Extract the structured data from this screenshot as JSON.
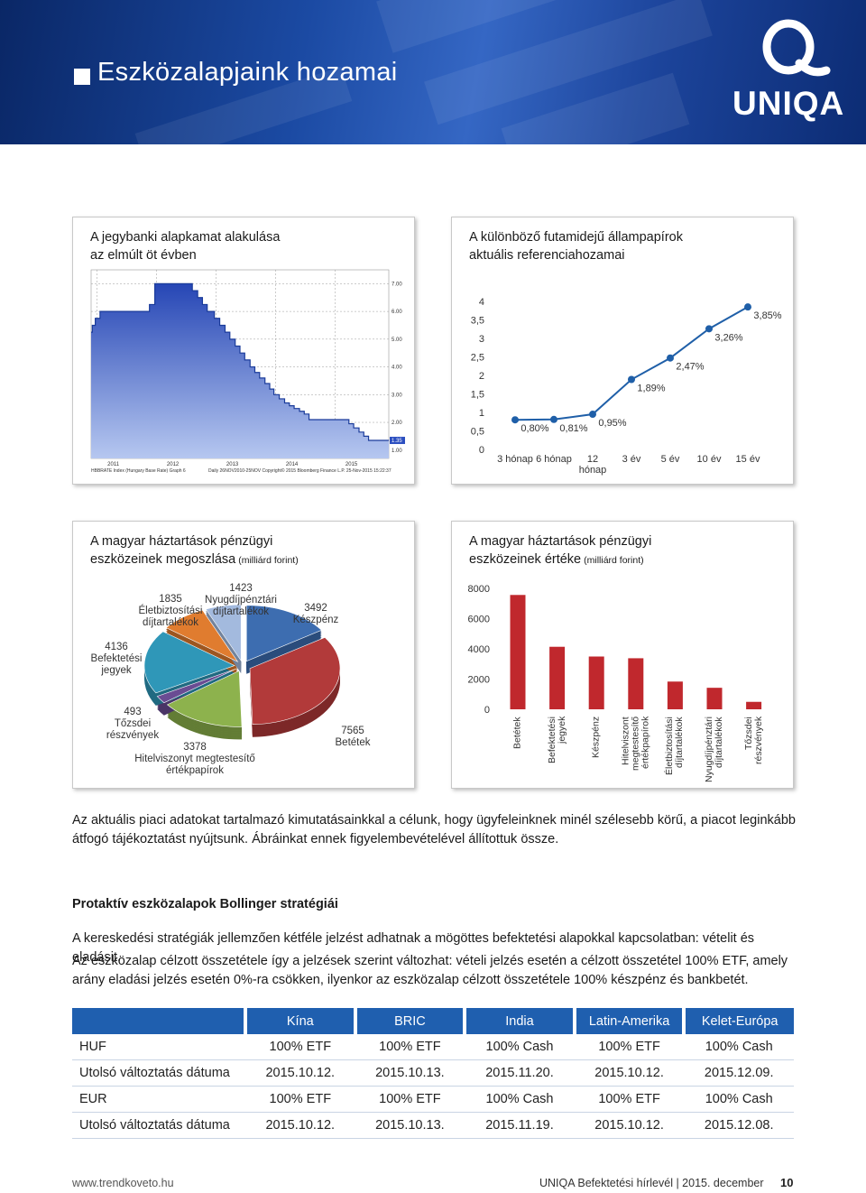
{
  "header": {
    "title": "Eszközalapjaink hozamai",
    "logo": "UNIQA"
  },
  "chart_data": [
    {
      "type": "line",
      "step": true,
      "title": "A jegybanki alapkamat alakulása\naz elmúlt öt évben",
      "x": [
        2010.9,
        2010.92,
        2010.97,
        2011.05,
        2011.88,
        2011.97,
        2012.6,
        2012.69,
        2012.77,
        2012.85,
        2012.97,
        2013.06,
        2013.15,
        2013.23,
        2013.32,
        2013.4,
        2013.48,
        2013.57,
        2013.65,
        2013.73,
        2013.82,
        2013.9,
        2013.97,
        2014.06,
        2014.15,
        2014.23,
        2014.31,
        2014.4,
        2014.48,
        2014.56,
        2015.23,
        2015.31,
        2015.4,
        2015.48,
        2015.56,
        2015.9
      ],
      "values": [
        5.25,
        5.5,
        5.75,
        6.0,
        6.25,
        7.0,
        6.75,
        6.5,
        6.25,
        6.0,
        5.75,
        5.5,
        5.25,
        5.0,
        4.75,
        4.5,
        4.25,
        4.0,
        3.8,
        3.6,
        3.4,
        3.2,
        3.0,
        2.85,
        2.7,
        2.6,
        2.5,
        2.4,
        2.3,
        2.1,
        1.95,
        1.8,
        1.65,
        1.5,
        1.35,
        1.35
      ],
      "color": "#1a3b9a",
      "xlim": [
        2010.9,
        2015.9
      ],
      "xticks": [
        2011,
        2012,
        2013,
        2014,
        2015
      ],
      "ylim": [
        0.7,
        7.5
      ],
      "yticks": [
        {
          "value": 1,
          "label": "1.00"
        },
        {
          "value": 2,
          "label": "2.00"
        },
        {
          "value": 3,
          "label": "3.00"
        },
        {
          "value": 4,
          "label": "4.00"
        },
        {
          "value": 5,
          "label": "5.00"
        },
        {
          "value": 6,
          "label": "6.00"
        },
        {
          "value": 7,
          "label": "7.00"
        }
      ],
      "last_value": {
        "value": 1.35,
        "label": "1.35"
      },
      "grid": true,
      "notes": [
        "HBBRATE Index (Hungary Base Rate) Graph 6",
        "Daily 26NOV2010-25NOV Copyright© 2015 Bloomberg Finance L.P.  25-Nov-2015 15:22:37"
      ]
    },
    {
      "type": "line",
      "title": "A különböző futamidejű állampapírok\naktuális referenciahozamai",
      "categories": [
        "3 hónap",
        "6 hónap",
        "12 hónap",
        "3 év",
        "5 év",
        "10 év",
        "15 év"
      ],
      "values": [
        0.8,
        0.81,
        0.95,
        1.89,
        2.47,
        3.26,
        3.85
      ],
      "value_labels": [
        "0,80%",
        "0,81%",
        "0,95%",
        "1,89%",
        "2,47%",
        "3,26%",
        "3,85%"
      ],
      "color": "#1f5fa8",
      "ylim": [
        0,
        4
      ],
      "yticks": [
        0,
        {
          "value": 0.5,
          "label": "0,5"
        },
        1,
        {
          "value": 1.5,
          "label": "1,5"
        },
        2,
        {
          "value": 2.5,
          "label": "2,5"
        },
        3,
        {
          "value": 3.5,
          "label": "3,5"
        },
        4
      ]
    },
    {
      "type": "pie",
      "title": "A magyar háztartások pénzügyi\neszközeinek megoszlása",
      "subtitle": "(milliárd forint)",
      "categories": [
        "Készpénz",
        "Betétek",
        "Hitelviszonyt megtestesítő értékpapírok",
        "Tőzsdei részvények",
        "Befektetési jegyek",
        "Életbiztosítási díjtartalékok",
        "Nyugdíjpénztári díjtartalékok"
      ],
      "values": [
        3492,
        7565,
        3378,
        493,
        4136,
        1835,
        1423
      ],
      "colors": [
        "#3d6db0",
        "#b23a3a",
        "#8db24d",
        "#6a4c93",
        "#2f97b8",
        "#e07c2f",
        "#a3bade"
      ]
    },
    {
      "type": "bar",
      "title": "A magyar háztartások pénzügyi\neszközeinek értéke",
      "subtitle": "(milliárd forint)",
      "categories": [
        "Betétek",
        "Befektetési jegyek",
        "Készpénz",
        "Hitelviszont megtestesítő értékpapírok",
        "Életbiztosítási díjtartalékok",
        "Nyugdíjpénztári díjtartalékok",
        "Tőzsdei részvények"
      ],
      "values": [
        7565,
        4136,
        3492,
        3378,
        1835,
        1423,
        493
      ],
      "color": "#c0282d",
      "ylim": [
        0,
        8000
      ],
      "yticks": [
        0,
        2000,
        4000,
        6000,
        8000
      ]
    }
  ],
  "intro": "Az aktuális piaci adatokat tartalmazó kimutatásainkkal a célunk, hogy ügyfeleinknek minél szélesebb körű, a piacot leginkább átfogó tájékoztatást nyújtsunk. Ábráinkat ennek figyelembevételével állítottuk össze.",
  "section": {
    "title": "Protaktív eszközalapok Bollinger stratégiái",
    "paragraphs": [
      "A kereskedési stratégiák jellemzően kétféle jelzést adhatnak a mögöttes befektetési alapokkal kapcsolatban: vételit és eladásit.",
      "Az eszközalap célzott összetétele így a jelzések szerint változhat: vételi jelzés esetén a célzott összetétel 100% ETF, amely arány eladási jelzés esetén 0%-ra csökken, ilyenkor az eszközalap célzott összetétele 100% készpénz és bankbetét."
    ]
  },
  "table": {
    "columns": [
      "Kína",
      "BRIC",
      "India",
      "Latin-Amerika",
      "Kelet-Európa"
    ],
    "rows": [
      [
        "HUF",
        "100% ETF",
        "100% ETF",
        "100% Cash",
        "100% ETF",
        "100% Cash"
      ],
      [
        "Utolsó változtatás dátuma",
        "2015.10.12.",
        "2015.10.13.",
        "2015.11.20.",
        "2015.10.12.",
        "2015.12.09."
      ],
      [
        "EUR",
        "100% ETF",
        "100% ETF",
        "100% Cash",
        "100% ETF",
        "100% Cash"
      ],
      [
        "Utolsó változtatás dátuma",
        "2015.10.12.",
        "2015.10.13.",
        "2015.11.19.",
        "2015.10.12.",
        "2015.12.08."
      ]
    ]
  },
  "footer": {
    "url": "www.trendkoveto.hu",
    "publication": "UNIQA Befektetési hírlevél | 2015. december",
    "page": "10"
  }
}
